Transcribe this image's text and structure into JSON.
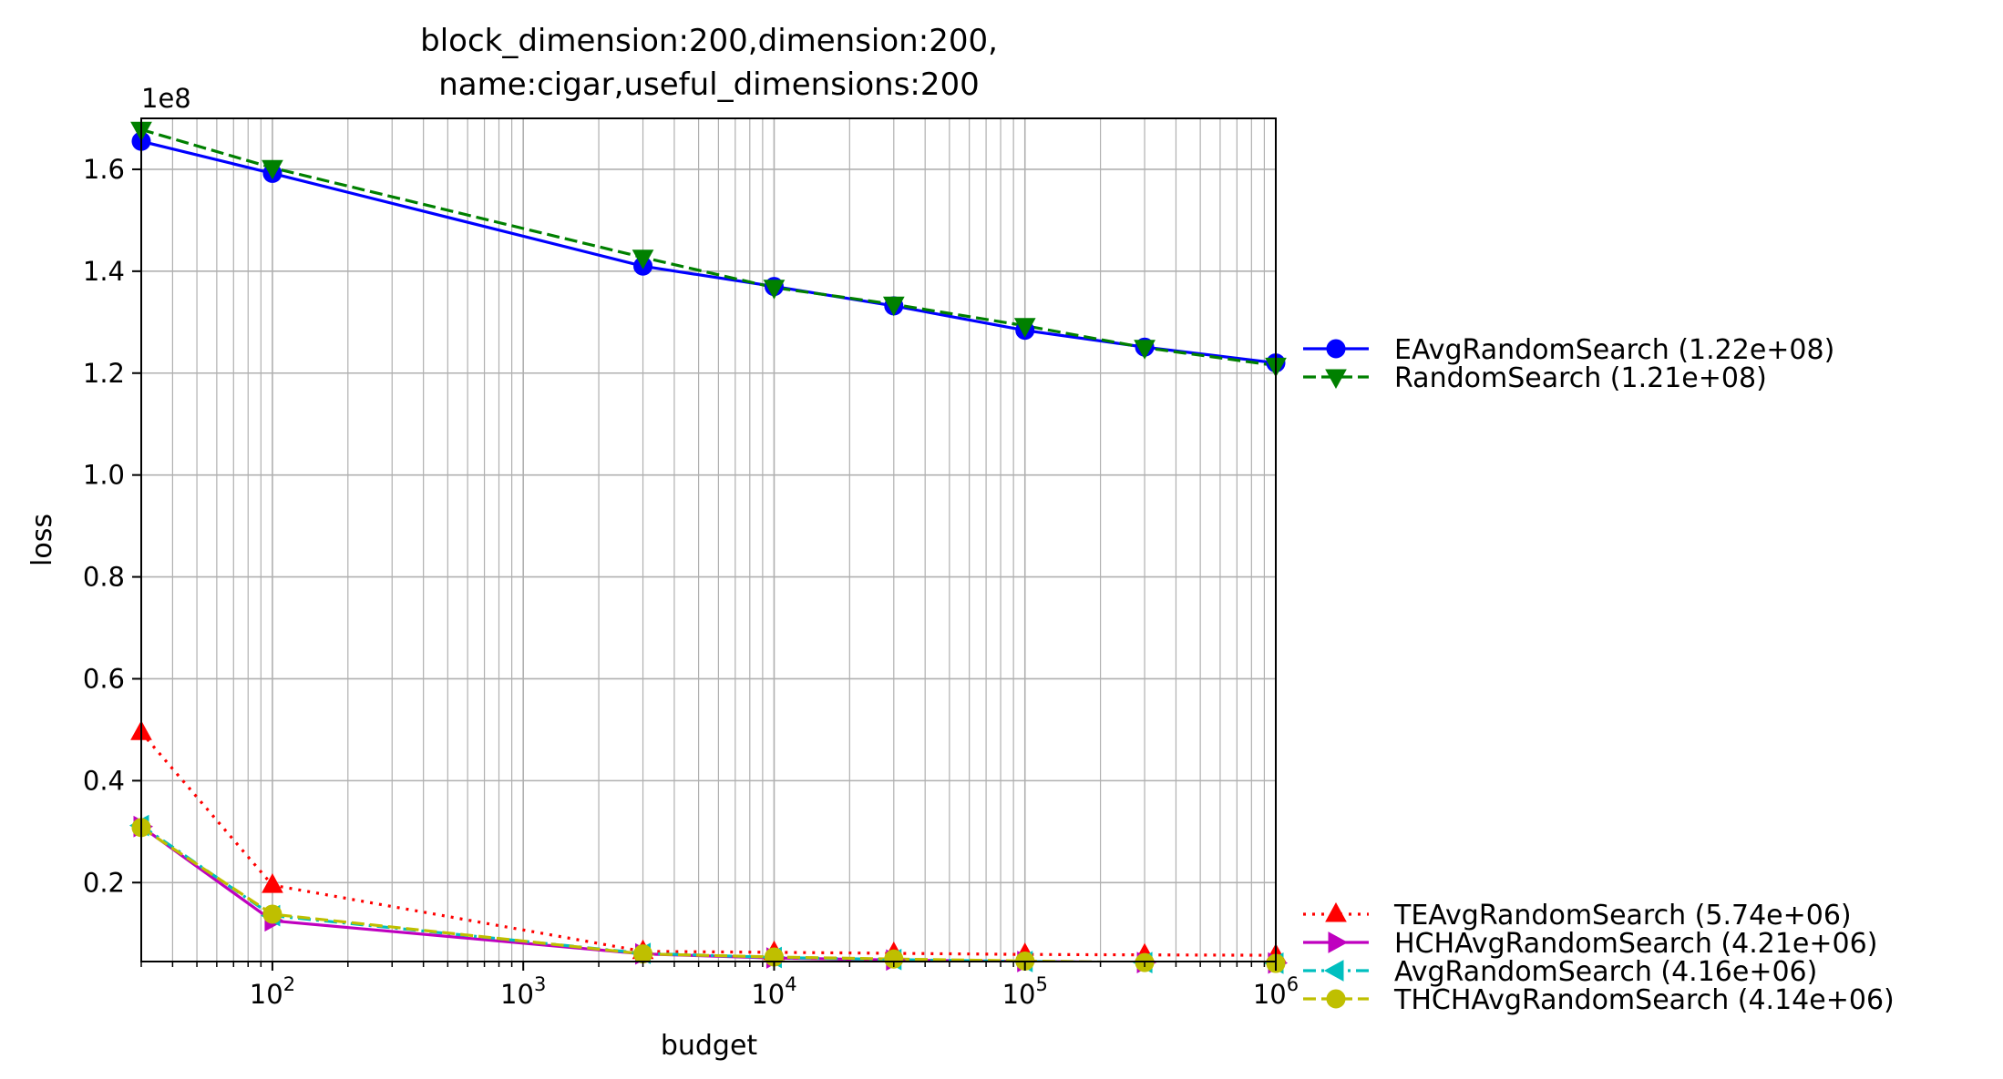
{
  "chart_data": {
    "type": "line",
    "title_lines": [
      "block_dimension:200,dimension:200,",
      "name:cigar,useful_dimensions:200"
    ],
    "xlabel": "budget",
    "ylabel": "loss",
    "x_scale": "log",
    "xlim": [
      30,
      1000000
    ],
    "ylim": [
      4500000,
      170000000
    ],
    "y_multiplier_label": "1e8",
    "x_ticks": [
      {
        "value": 100,
        "base": "10",
        "exp": "2"
      },
      {
        "value": 1000,
        "base": "10",
        "exp": "3"
      },
      {
        "value": 10000,
        "base": "10",
        "exp": "4"
      },
      {
        "value": 100000,
        "base": "10",
        "exp": "5"
      },
      {
        "value": 1000000,
        "base": "10",
        "exp": "6"
      }
    ],
    "y_ticks": [
      {
        "value": 20000000,
        "label": "0.2"
      },
      {
        "value": 40000000,
        "label": "0.4"
      },
      {
        "value": 60000000,
        "label": "0.6"
      },
      {
        "value": 80000000,
        "label": "0.8"
      },
      {
        "value": 100000000,
        "label": "1.0"
      },
      {
        "value": 120000000,
        "label": "1.2"
      },
      {
        "value": 140000000,
        "label": "1.4"
      },
      {
        "value": 160000000,
        "label": "1.6"
      }
    ],
    "grid": true,
    "legend_position": "outside-right",
    "x": [
      30,
      100,
      3000,
      10000,
      30000,
      100000,
      300000,
      1000000
    ],
    "series": [
      {
        "name": "EAvgRandomSearch (1.22e+08)",
        "color": "#0000ff",
        "line_style": "solid",
        "marker": "circle",
        "values": [
          165500000,
          159200000,
          141000000,
          137000000,
          133200000,
          128400000,
          125100000,
          122000000
        ]
      },
      {
        "name": "RandomSearch (1.21e+08)",
        "color": "#008000",
        "line_style": "dashed",
        "marker": "triangle-down",
        "values": [
          167800000,
          160300000,
          142700000,
          136800000,
          133500000,
          129300000,
          125000000,
          121500000
        ]
      },
      {
        "name": "TEAvgRandomSearch (5.74e+06)",
        "color": "#ff0000",
        "line_style": "dotted",
        "marker": "triangle-up",
        "values": [
          49500000,
          19500000,
          6500000,
          6300000,
          6100000,
          5900000,
          5800000,
          5740000
        ]
      },
      {
        "name": "HCHAvgRandomSearch (4.21e+06)",
        "color": "#bf00bf",
        "line_style": "solid",
        "marker": "triangle-right",
        "values": [
          31000000,
          12500000,
          6000000,
          5200000,
          4800000,
          4500000,
          4300000,
          4210000
        ]
      },
      {
        "name": "AvgRandomSearch (4.16e+06)",
        "color": "#00bfbf",
        "line_style": "dashdot",
        "marker": "triangle-left",
        "values": [
          31200000,
          13500000,
          6100000,
          5300000,
          4900000,
          4500000,
          4300000,
          4160000
        ]
      },
      {
        "name": "THCHAvgRandomSearch (4.14e+06)",
        "color": "#bfbf00",
        "line_style": "dashed",
        "marker": "circle",
        "values": [
          30800000,
          13800000,
          6000000,
          5400000,
          5000000,
          4600000,
          4300000,
          4140000
        ]
      }
    ],
    "legend_groups": [
      [
        0,
        1
      ],
      [
        2,
        3,
        4,
        5
      ]
    ]
  }
}
